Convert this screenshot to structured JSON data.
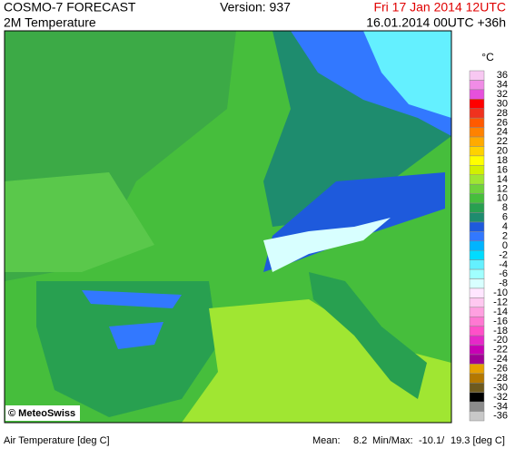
{
  "header": {
    "title": "COSMO-7 FORECAST",
    "subtitle": "2M Temperature",
    "version": "Version: 937",
    "valid_time": "Fri 17 Jan 2014 12UTC",
    "run_time": "16.01.2014 00UTC +36h"
  },
  "legend": {
    "unit": "°C",
    "entries": [
      {
        "label": "36",
        "color": "#f8c8f2"
      },
      {
        "label": "34",
        "color": "#f08ce6"
      },
      {
        "label": "32",
        "color": "#e650dc"
      },
      {
        "label": "30",
        "color": "#ff0000"
      },
      {
        "label": "28",
        "color": "#f0321e"
      },
      {
        "label": "26",
        "color": "#ff5a00"
      },
      {
        "label": "24",
        "color": "#ff8200"
      },
      {
        "label": "22",
        "color": "#ffaa00"
      },
      {
        "label": "20",
        "color": "#ffd200"
      },
      {
        "label": "18",
        "color": "#ffff00"
      },
      {
        "label": "16",
        "color": "#d2f000"
      },
      {
        "label": "14",
        "color": "#a0e632"
      },
      {
        "label": "12",
        "color": "#6ed23c"
      },
      {
        "label": "10",
        "color": "#46be3c"
      },
      {
        "label": "8",
        "color": "#28a050"
      },
      {
        "label": "6",
        "color": "#1e8c6e"
      },
      {
        "label": "4",
        "color": "#1e5adc"
      },
      {
        "label": "2",
        "color": "#3278ff"
      },
      {
        "label": "0",
        "color": "#00b4ff"
      },
      {
        "label": "-2",
        "color": "#00dcff"
      },
      {
        "label": "-4",
        "color": "#64f0ff"
      },
      {
        "label": "-6",
        "color": "#a0ffff"
      },
      {
        "label": "-8",
        "color": "#d8ffff"
      },
      {
        "label": "-10",
        "color": "#ffe6ff"
      },
      {
        "label": "-12",
        "color": "#ffc8f0"
      },
      {
        "label": "-14",
        "color": "#ffa0e0"
      },
      {
        "label": "-16",
        "color": "#ff78d2"
      },
      {
        "label": "-18",
        "color": "#ff50c8"
      },
      {
        "label": "-20",
        "color": "#e628c8"
      },
      {
        "label": "-22",
        "color": "#c800b4"
      },
      {
        "label": "-24",
        "color": "#a00096"
      },
      {
        "label": "-26",
        "color": "#e6a000"
      },
      {
        "label": "-28",
        "color": "#b47800"
      },
      {
        "label": "-30",
        "color": "#6e5a1e"
      },
      {
        "label": "-32",
        "color": "#000000"
      },
      {
        "label": "-34",
        "color": "#8c8c8c"
      },
      {
        "label": "-36",
        "color": "#c8c8c8"
      }
    ]
  },
  "map": {
    "credit": "© MeteoSwiss"
  },
  "footer": {
    "label": "Air Temperature [deg C]",
    "mean_label": "Mean:",
    "mean": "8.2",
    "minmax_label": "Min/Max:",
    "min": "-10.1/",
    "max": "19.3 [deg C]"
  }
}
